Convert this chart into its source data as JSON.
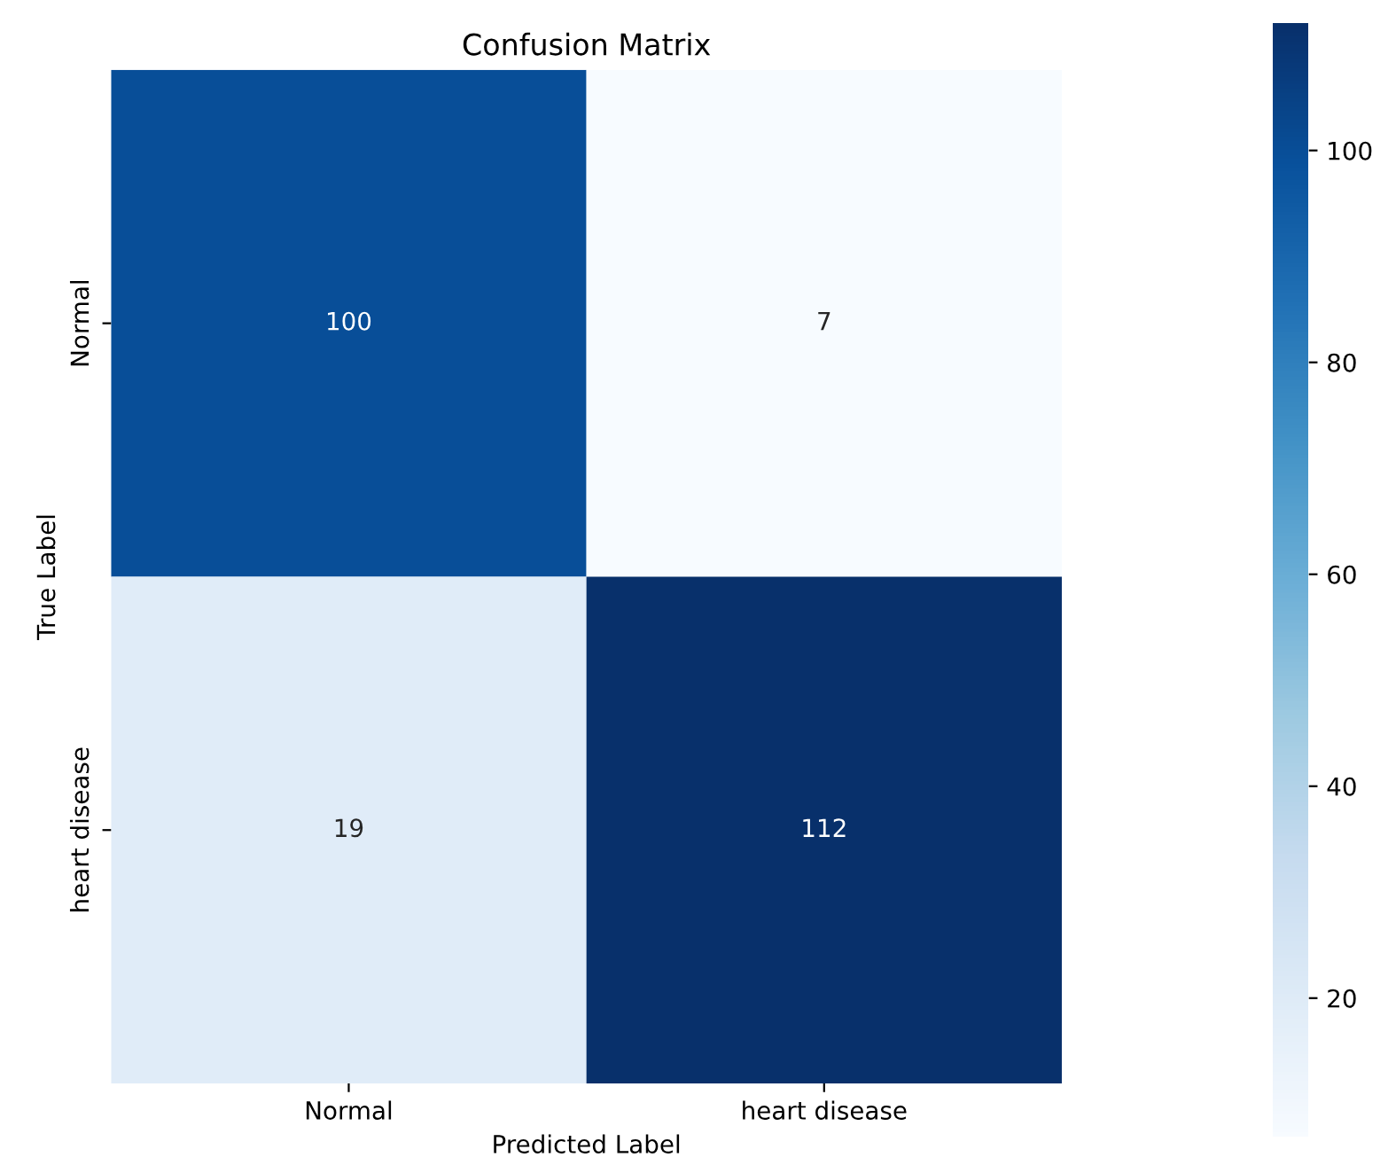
{
  "chart_data": {
    "type": "heatmap",
    "title": "Confusion Matrix",
    "xlabel": "Predicted Label",
    "ylabel": "True Label",
    "categories": [
      "Normal",
      "heart disease"
    ],
    "y_categories": [
      "Normal",
      "heart disease"
    ],
    "cells": [
      [
        100,
        7
      ],
      [
        19,
        112
      ]
    ],
    "data_labels": true,
    "clim": [
      7,
      112
    ],
    "cticks": [
      20,
      40,
      60,
      80,
      100
    ]
  }
}
